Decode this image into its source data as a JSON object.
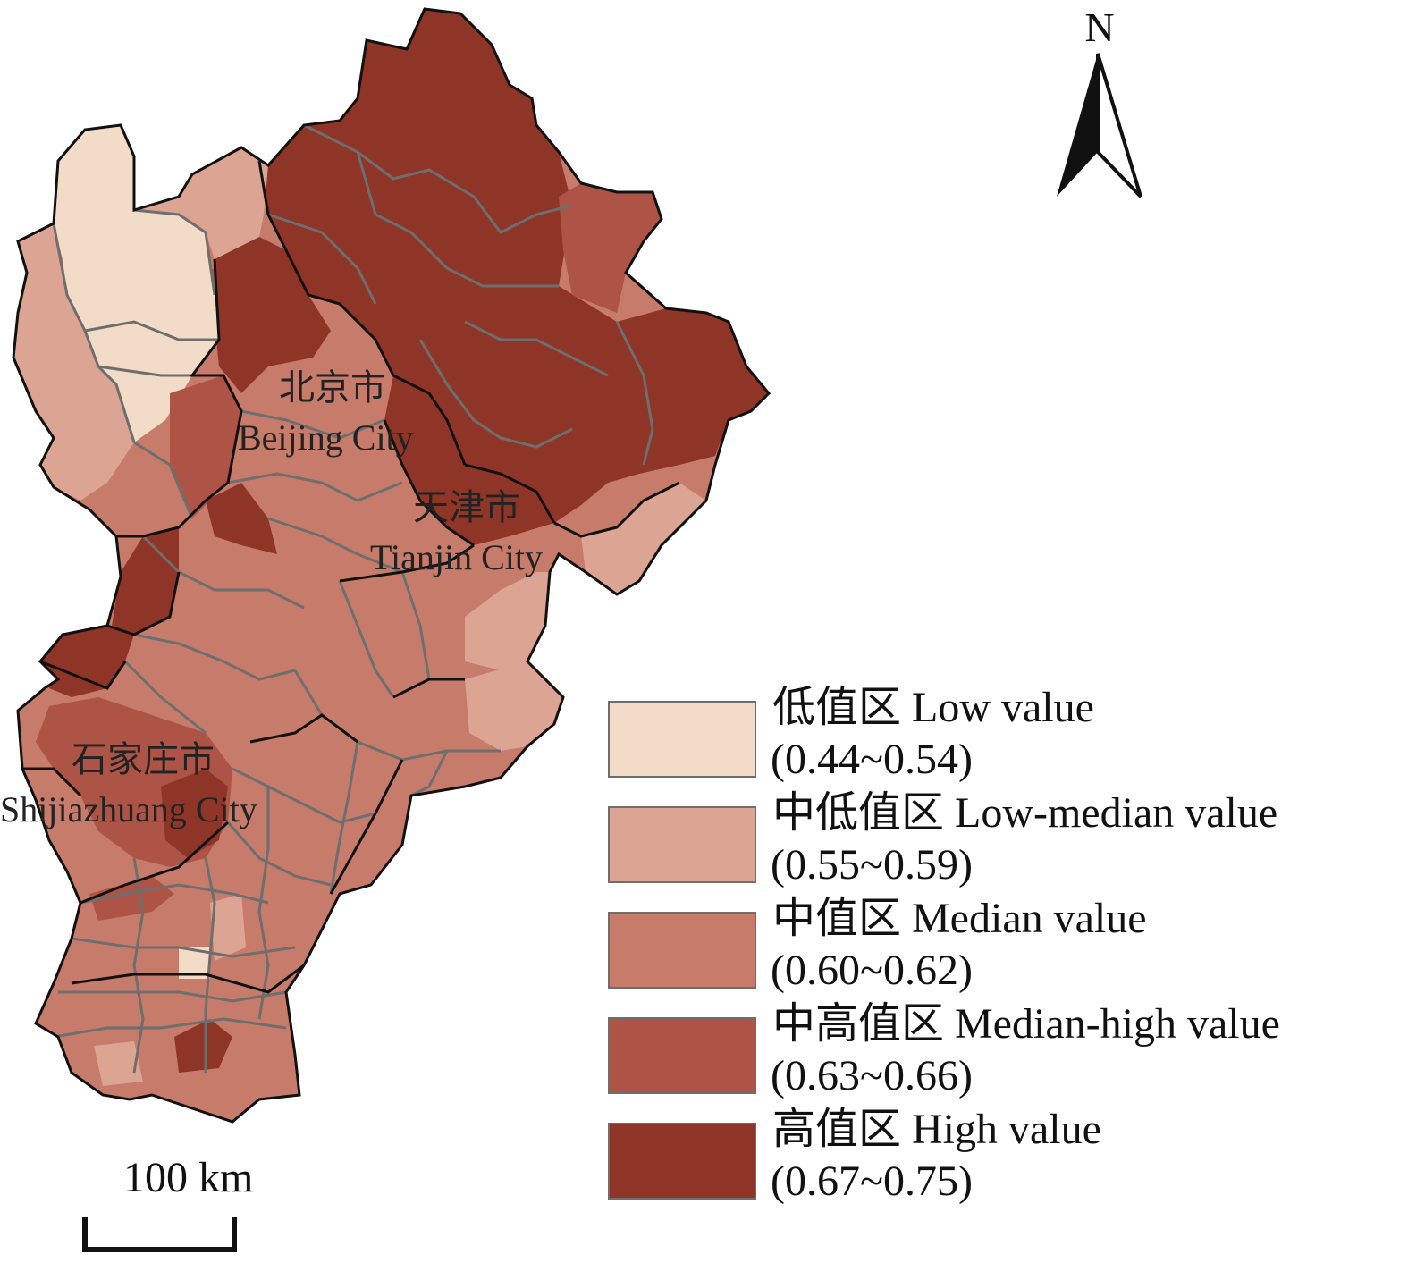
{
  "map": {
    "labels": {
      "beijing_cn": "北京市",
      "beijing_en": "Beijing City",
      "tianjin_cn": "天津市",
      "tianjin_en": "Tianjin City",
      "shijiazhuang_cn": "石家庄市",
      "shijiazhuang_en": "Shijiazhuang City"
    }
  },
  "legend": {
    "items": [
      {
        "name": "低值区 Low value",
        "range": "(0.44~0.54)",
        "color": "#f3dcc7"
      },
      {
        "name": "中低值区 Low-median value",
        "range": "(0.55~0.59)",
        "color": "#dca593"
      },
      {
        "name": "中值区 Median value",
        "range": "(0.60~0.62)",
        "color": "#c67b6b"
      },
      {
        "name": "中高值区 Median-high value",
        "range": "(0.63~0.66)",
        "color": "#ad5446"
      },
      {
        "name": "高值区 High value",
        "range": "(0.67~0.75)",
        "color": "#8e3527"
      }
    ]
  },
  "north_arrow": {
    "letter": "N"
  },
  "scale_bar": {
    "label": "100 km"
  },
  "colors": {
    "low": "#f3dcc7",
    "low_median": "#dca593",
    "median": "#c67b6b",
    "median_high": "#ad5446",
    "high": "#8e3527",
    "county_border": "#6e6e6e",
    "city_border": "#111111"
  }
}
